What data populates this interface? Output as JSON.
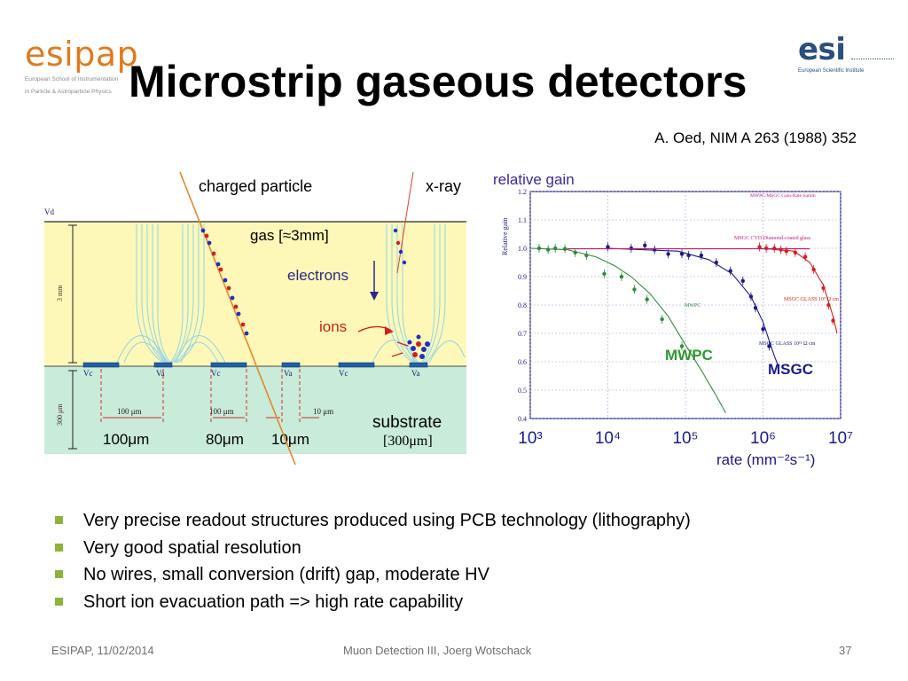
{
  "logos": {
    "left": {
      "wordmark": "esipap",
      "line1": "European School of Instrumentation",
      "line2": "in Particle & Astroparticle Physics"
    },
    "right": {
      "wordmark": "esi",
      "line1": "European Scientific Institute"
    }
  },
  "title": "Microstrip gaseous detectors",
  "citation": "A. Oed, NIM A 263 (1988) 352",
  "diagram": {
    "charged_particle": "charged particle",
    "xray": "x-ray",
    "vd": "Vd",
    "gas": "gas [≈3mm]",
    "electrons": "electrons",
    "ions": "ions",
    "drift_gap": "3 mm",
    "substrate_thickness": "300 μm",
    "substrate": "substrate",
    "substrate_dim": "[300μm]",
    "strips": [
      "Vc",
      "Va",
      "Vc",
      "Va",
      "Vc",
      "Va"
    ],
    "small_dims": [
      "100 μm",
      "100 μm",
      "10 μm"
    ],
    "big_dims": [
      "100μm",
      "80μm",
      "10μm"
    ]
  },
  "chart_data": {
    "type": "line",
    "title": "relative gain",
    "inner_title": "MWPC/MSGC Gain-Rate Summ",
    "ylabel": "Relative gain",
    "xlabel": "rate (mm⁻²s⁻¹)",
    "xscale": "log",
    "xlim": [
      1000,
      10000000
    ],
    "ylim": [
      0.4,
      1.2
    ],
    "x_ticks": [
      "10³",
      "10⁴",
      "10⁵",
      "10⁶",
      "10⁷"
    ],
    "y_ticks": [
      "0.4",
      "0.5",
      "0.6",
      "0.7",
      "0.8",
      "0.9",
      "1.0",
      "1.1",
      "1.2"
    ],
    "big_labels": {
      "mwpc": "MWPC",
      "msgc": "MSGC"
    },
    "series": [
      {
        "name": "MWPC",
        "color": "#2e8b3a",
        "annotation": "MWPC",
        "points": [
          [
            1300,
            1.0
          ],
          [
            1700,
            0.995
          ],
          [
            2100,
            1.0
          ],
          [
            2800,
            0.998
          ],
          [
            3800,
            0.985
          ],
          [
            5300,
            0.975
          ],
          [
            9000,
            0.91
          ],
          [
            15000,
            0.9
          ],
          [
            22000,
            0.855
          ],
          [
            32000,
            0.82
          ],
          [
            50000,
            0.75
          ],
          [
            90000,
            0.655
          ]
        ],
        "fit": [
          [
            1000,
            1.0
          ],
          [
            3000,
            0.995
          ],
          [
            7000,
            0.97
          ],
          [
            12000,
            0.94
          ],
          [
            20000,
            0.9
          ],
          [
            35000,
            0.84
          ],
          [
            60000,
            0.76
          ],
          [
            100000,
            0.66
          ],
          [
            160000,
            0.57
          ],
          [
            250000,
            0.48
          ],
          [
            330000,
            0.42
          ]
        ]
      },
      {
        "name": "MSGC GLASS 10¹¹ Ω cm",
        "color": "#1a1a8c",
        "annotation": "MSGC GLASS 10¹¹ Ω cm",
        "points": [
          [
            10000,
            1.005
          ],
          [
            20000,
            1.0
          ],
          [
            30000,
            1.01
          ],
          [
            40000,
            0.995
          ],
          [
            60000,
            0.98
          ],
          [
            90000,
            0.98
          ],
          [
            110000,
            0.975
          ],
          [
            160000,
            0.975
          ],
          [
            250000,
            0.95
          ],
          [
            380000,
            0.92
          ],
          [
            550000,
            0.885
          ],
          [
            700000,
            0.83
          ],
          [
            800000,
            0.79
          ],
          [
            1000000,
            0.715
          ],
          [
            1200000,
            0.655
          ]
        ],
        "fit": [
          [
            10000,
            1.0
          ],
          [
            80000,
            0.99
          ],
          [
            200000,
            0.96
          ],
          [
            400000,
            0.91
          ],
          [
            700000,
            0.83
          ],
          [
            1000000,
            0.74
          ],
          [
            1400000,
            0.62
          ],
          [
            1600000,
            0.58
          ]
        ]
      },
      {
        "name": "MSGC GLASS 10⁹ Ω cm",
        "color": "#d62020",
        "annotation": "MSGC GLASS 10⁹ Ω cm",
        "points": [
          [
            900000,
            1.005
          ],
          [
            1100000,
            1.0
          ],
          [
            1400000,
            1.0
          ],
          [
            1700000,
            0.995
          ],
          [
            2000000,
            0.99
          ],
          [
            2600000,
            0.985
          ],
          [
            3500000,
            0.97
          ],
          [
            4500000,
            0.925
          ],
          [
            6000000,
            0.86
          ],
          [
            7000000,
            0.8
          ],
          [
            8000000,
            0.745
          ]
        ],
        "fit": [
          [
            900000,
            1.0
          ],
          [
            2500000,
            0.99
          ],
          [
            4000000,
            0.95
          ],
          [
            6000000,
            0.87
          ],
          [
            8000000,
            0.76
          ],
          [
            9000000,
            0.7
          ]
        ]
      },
      {
        "name": "MSGC CVD Diamond-coated glass",
        "color": "#c01870",
        "annotation": "MSGC CVD Diamond-coated glass",
        "points": [],
        "fit": [
          [
            3000,
            0.998
          ],
          [
            100000,
            0.998
          ],
          [
            1000000,
            0.998
          ],
          [
            4000000,
            0.998
          ]
        ]
      }
    ]
  },
  "bullets": [
    "Very precise readout structures produced using PCB technology (lithography)",
    "Very good spatial resolution",
    "No wires, small conversion (drift) gap, moderate HV",
    "Short ion evacuation path => high rate capability"
  ],
  "footer": {
    "left": "ESIPAP, 11/02/2014",
    "center": "Muon Detection III, Joerg Wotschack",
    "page": "37"
  }
}
